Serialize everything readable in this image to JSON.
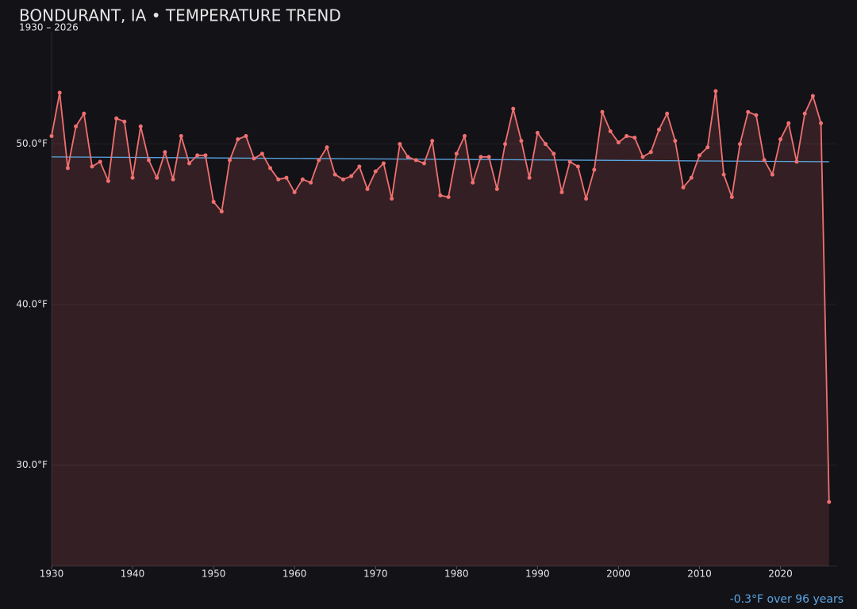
{
  "chart_data": {
    "type": "line",
    "title": "BONDURANT, IA • TEMPERATURE TREND",
    "subtitle": "1930 – 2026",
    "annotation": "-0.3°F over 96 years",
    "x": [
      1930,
      1931,
      1932,
      1933,
      1934,
      1935,
      1936,
      1937,
      1938,
      1939,
      1940,
      1941,
      1942,
      1943,
      1944,
      1945,
      1946,
      1947,
      1948,
      1949,
      1950,
      1951,
      1952,
      1953,
      1954,
      1955,
      1956,
      1957,
      1958,
      1959,
      1960,
      1961,
      1962,
      1963,
      1964,
      1965,
      1966,
      1967,
      1968,
      1969,
      1970,
      1971,
      1972,
      1973,
      1974,
      1975,
      1976,
      1977,
      1978,
      1979,
      1980,
      1981,
      1982,
      1983,
      1984,
      1985,
      1986,
      1987,
      1988,
      1989,
      1990,
      1991,
      1992,
      1993,
      1994,
      1995,
      1996,
      1997,
      1998,
      1999,
      2000,
      2001,
      2002,
      2003,
      2004,
      2005,
      2006,
      2007,
      2008,
      2009,
      2010,
      2011,
      2012,
      2013,
      2014,
      2015,
      2016,
      2017,
      2018,
      2019,
      2020,
      2021,
      2022,
      2023,
      2024,
      2025,
      2026
    ],
    "values": [
      50.5,
      53.2,
      48.5,
      51.1,
      51.9,
      48.6,
      48.9,
      47.7,
      51.6,
      51.4,
      47.9,
      51.1,
      49.0,
      47.9,
      49.5,
      47.8,
      50.5,
      48.8,
      49.3,
      49.3,
      46.4,
      45.8,
      49.0,
      50.3,
      50.5,
      49.1,
      49.4,
      48.5,
      47.8,
      47.9,
      47.0,
      47.8,
      47.6,
      49.0,
      49.8,
      48.1,
      47.8,
      48.0,
      48.6,
      47.2,
      48.3,
      48.8,
      46.6,
      50.0,
      49.2,
      49.0,
      48.8,
      50.2,
      46.8,
      46.7,
      49.4,
      50.5,
      47.6,
      49.2,
      49.2,
      47.2,
      50.0,
      52.2,
      50.2,
      47.9,
      50.7,
      50.0,
      49.4,
      47.0,
      48.9,
      48.6,
      46.6,
      48.4,
      52.0,
      50.8,
      50.1,
      50.5,
      50.4,
      49.2,
      49.5,
      50.9,
      51.9,
      50.2,
      47.3,
      47.9,
      49.3,
      49.8,
      53.3,
      48.1,
      46.7,
      50.0,
      52.0,
      51.8,
      49.0,
      48.1,
      50.3,
      51.3,
      48.9,
      51.9,
      53.0,
      51.3,
      27.7
    ],
    "color": "#f07070",
    "trend": {
      "x": [
        1930,
        2026
      ],
      "values": [
        49.2,
        48.9
      ],
      "color": "#5aa9e6"
    },
    "xlim": [
      1930,
      2027
    ],
    "ylim": [
      23.7,
      57
    ],
    "xticks": [
      1930,
      1940,
      1950,
      1960,
      1970,
      1980,
      1990,
      2000,
      2010,
      2020
    ],
    "yticks": [
      {
        "value": 30,
        "label": "30.0°F"
      },
      {
        "value": 40,
        "label": "40.0°F"
      },
      {
        "value": 50,
        "label": "50.0°F"
      }
    ],
    "grid": true
  }
}
